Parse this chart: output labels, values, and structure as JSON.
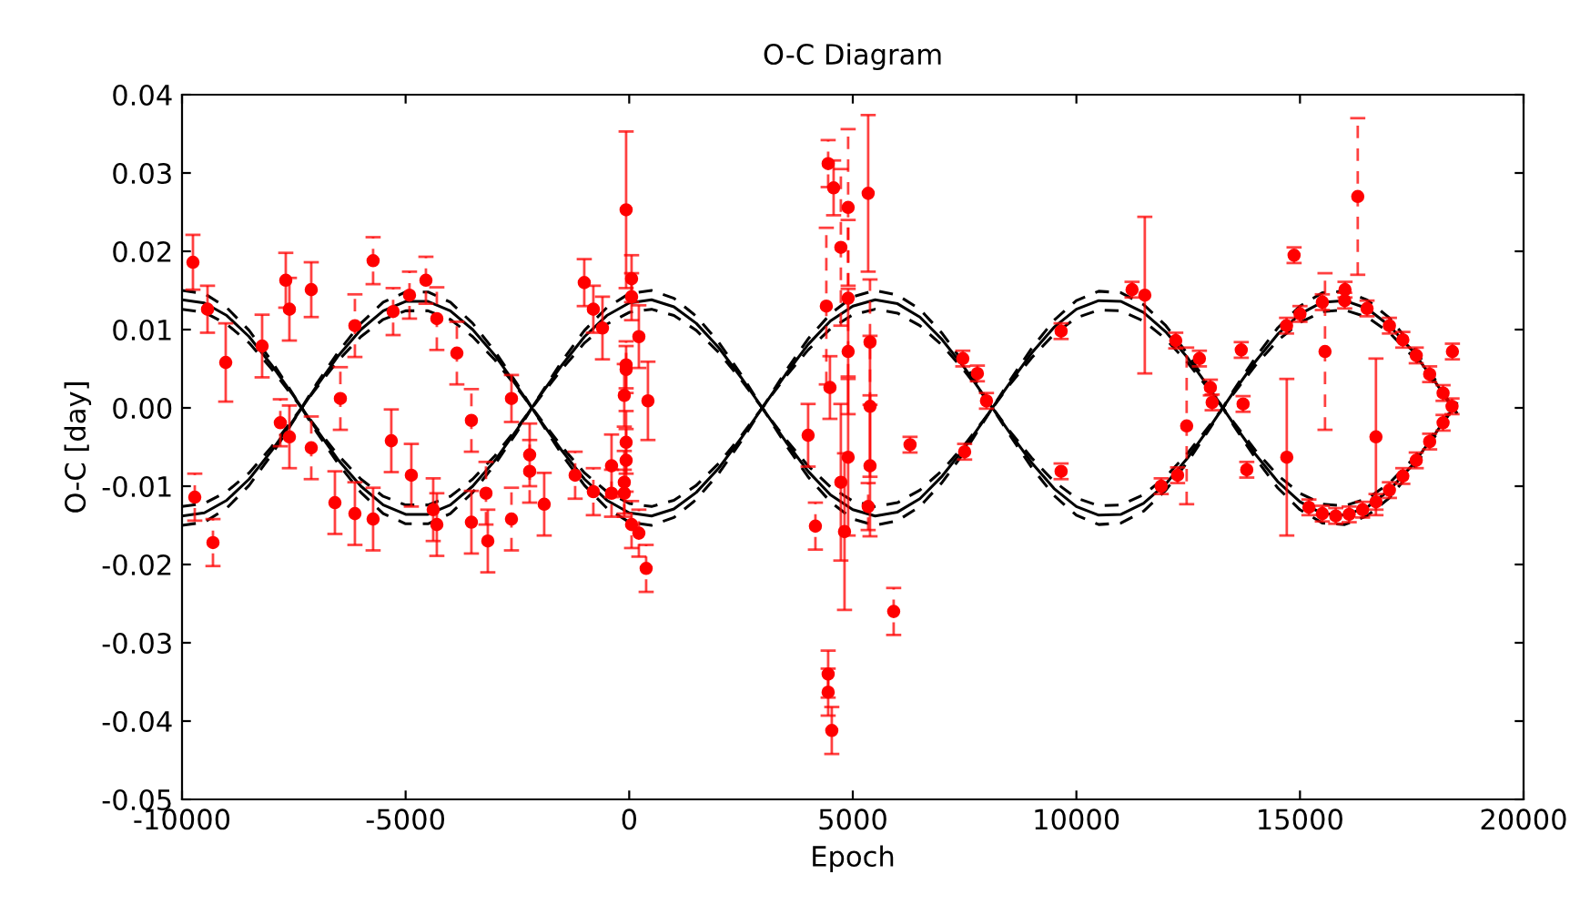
{
  "chart_data": {
    "type": "scatter",
    "title": "O-C Diagram",
    "xlabel": "Epoch",
    "ylabel": "O-C [day]",
    "xlim": [
      -10000,
      20000
    ],
    "xticks": [
      -10000,
      -5000,
      0,
      5000,
      10000,
      15000,
      20000
    ],
    "ylim": [
      -0.05,
      0.04
    ],
    "yticks": [
      {
        "value": -0.05,
        "label": "-0.05"
      },
      {
        "value": -0.04,
        "label": "-0.04"
      },
      {
        "value": -0.03,
        "label": "-0.03"
      },
      {
        "value": -0.02,
        "label": "-0.02"
      },
      {
        "value": -0.01,
        "label": "-0.01"
      },
      {
        "value": 0,
        "label": "0.00"
      },
      {
        "value": 0.01,
        "label": "0.01"
      },
      {
        "value": 0.02,
        "label": "0.02"
      },
      {
        "value": 0.03,
        "label": "0.03"
      },
      {
        "value": 0.04,
        "label": "0.04"
      }
    ],
    "grid": false,
    "series": [
      {
        "color": "#ff0000",
        "marker": "circle",
        "line_style": "solid",
        "x": [
          -9756,
          -9430,
          -9023,
          -8209,
          -7680,
          -7599,
          -7110,
          -7599,
          -6581,
          -6134,
          -5727,
          -5320,
          -4872,
          -4383,
          -4302,
          -3529,
          -3162,
          -2633,
          -2226,
          -1901,
          -1005,
          -802,
          -598,
          -395,
          -69,
          53,
          53,
          -69,
          -110,
          216,
          419,
          -69,
          -69,
          -110,
          4571,
          5344,
          4896,
          4489,
          5385,
          4001,
          4896,
          4733,
          4815,
          5385,
          4449,
          4449,
          4530,
          6280,
          7460,
          7786,
          7989,
          7501,
          9658,
          11245,
          11530,
          13687,
          18409,
          16007,
          16699,
          14705,
          12222,
          12751,
          12996,
          11897,
          12263,
          13810,
          14700,
          15000,
          15500,
          16000,
          16500,
          17000,
          17300,
          17600,
          17900,
          18200,
          18400,
          15200,
          15500,
          15800,
          16100,
          16400,
          16700,
          17000,
          17300,
          17600,
          17900,
          18200
        ],
        "values": [
          0.0186,
          0.0126,
          0.0058,
          0.0079,
          0.0163,
          0.0126,
          0.0151,
          -0.0037,
          -0.0121,
          -0.0135,
          -0.0142,
          -0.0042,
          -0.0086,
          -0.013,
          -0.0149,
          -0.0146,
          -0.017,
          0.0012,
          -0.006,
          -0.0123,
          0.016,
          0.0126,
          0.0102,
          -0.0074,
          0.0253,
          0.0165,
          0.0142,
          0.0049,
          0.0016,
          0.0091,
          0.0009,
          -0.0044,
          -0.0067,
          -0.0095,
          0.0281,
          0.0274,
          0.0072,
          0.0026,
          0.0002,
          -0.0035,
          -0.0063,
          -0.0095,
          -0.0158,
          -0.0074,
          -0.034,
          -0.0363,
          -0.0412,
          -0.0047,
          0.0063,
          0.0044,
          0.0009,
          -0.0056,
          0.0098,
          0.0151,
          0.0144,
          0.0074,
          0.0072,
          0.0151,
          -0.0037,
          -0.0063,
          0.0086,
          0.0063,
          0.0026,
          -0.01,
          -0.0086,
          -0.0079,
          0.0105,
          0.012,
          0.0135,
          0.0137,
          0.0127,
          0.0105,
          0.0087,
          0.0067,
          0.0043,
          0.0019,
          0.0002,
          -0.0127,
          -0.0135,
          -0.0138,
          -0.0136,
          -0.013,
          -0.012,
          -0.0105,
          -0.0087,
          -0.0067,
          -0.0043,
          -0.0019
        ],
        "errors": [
          0.0035,
          0.003,
          0.005,
          0.004,
          0.0035,
          0.004,
          0.0035,
          0.004,
          0.004,
          0.004,
          0.004,
          0.004,
          0.004,
          0.004,
          0.004,
          0.004,
          0.004,
          0.003,
          0.004,
          0.004,
          0.003,
          0.003,
          0.004,
          0.004,
          0.01,
          0.003,
          0.003,
          0.003,
          0.004,
          0.004,
          0.005,
          0.004,
          0.004,
          0.004,
          0.0035,
          0.01,
          0.008,
          0.004,
          0.009,
          0.004,
          0.01,
          0.01,
          0.01,
          0.009,
          0.003,
          0.003,
          0.003,
          0.001,
          0.001,
          0.001,
          0.001,
          0.001,
          0.001,
          0.001,
          0.01,
          0.001,
          0.001,
          0.001,
          0.01,
          0.01,
          0.001,
          0.001,
          0.001,
          0.001,
          0.001,
          0.001,
          0.001,
          0.001,
          0.001,
          0.001,
          0.001,
          0.001,
          0.001,
          0.001,
          0.001,
          0.001,
          0.001,
          0.001,
          0.001,
          0.001,
          0.001,
          0.001,
          0.001,
          0.001,
          0.001,
          0.001,
          0.001,
          0.001
        ]
      },
      {
        "color": "#ff0000",
        "marker": "circle",
        "line_style": "dashed",
        "x": [
          -9715,
          -9308,
          -7802,
          -7110,
          -6459,
          -5727,
          -6134,
          -5279,
          -4913,
          -4546,
          -4302,
          -3854,
          -3529,
          -3203,
          -2633,
          -2226,
          -1209,
          -802,
          -395,
          -110,
          53,
          216,
          379,
          -69,
          4449,
          4896,
          4733,
          4408,
          4896,
          5385,
          5344,
          4164,
          5914,
          9658,
          14868,
          16292,
          15560,
          12466,
          13728,
          13036
        ],
        "values": [
          -0.0114,
          -0.0172,
          -0.0019,
          -0.0051,
          0.0012,
          0.0188,
          0.0105,
          0.0123,
          0.0144,
          0.0163,
          0.0114,
          0.007,
          -0.0016,
          -0.0109,
          -0.0142,
          -0.0081,
          -0.0086,
          -0.0107,
          -0.0109,
          -0.0109,
          -0.0149,
          -0.016,
          -0.0205,
          0.0055,
          0.0312,
          0.0256,
          0.0205,
          0.013,
          0.014,
          0.0084,
          -0.0126,
          -0.0151,
          -0.026,
          -0.0081,
          0.0195,
          0.027,
          0.0072,
          -0.0023,
          0.0005,
          0.0007
        ],
        "errors": [
          0.003,
          0.003,
          0.003,
          0.004,
          0.004,
          0.003,
          0.004,
          0.003,
          0.003,
          0.003,
          0.004,
          0.004,
          0.004,
          0.004,
          0.004,
          0.004,
          0.003,
          0.003,
          0.003,
          0.003,
          0.003,
          0.003,
          0.003,
          0.003,
          0.003,
          0.01,
          0.01,
          0.01,
          0.01,
          0.008,
          0.003,
          0.003,
          0.003,
          0.001,
          0.001,
          0.01,
          0.01,
          0.01,
          0.001,
          0.001
        ]
      },
      {
        "type": "line",
        "color": "#000000",
        "marker": "none",
        "line_style": "solid",
        "values": [
          0.0138,
          0.0134,
          0.0118,
          0.0091,
          0.0055,
          0.0015,
          -0.0027,
          -0.0067,
          -0.01,
          -0.0124,
          -0.0136,
          -0.0136,
          -0.0124,
          -0.01,
          -0.0067,
          -0.0027,
          0.0015,
          0.0055,
          0.0091,
          0.0118,
          0.0134,
          0.0138,
          0.0129,
          0.0108,
          0.0077,
          0.0039,
          -0.0002,
          -0.0043,
          -0.0081,
          -0.0111,
          -0.013,
          -0.0138,
          -0.0133,
          -0.0116,
          -0.0087,
          -0.0051,
          -0.001,
          0.0031,
          0.007,
          0.0103,
          0.0126,
          0.0137,
          0.0136,
          0.0122,
          0.0097,
          0.0063,
          0.0023,
          -0.0019,
          -0.0059,
          -0.0094,
          -0.012,
          -0.0135,
          -0.0137,
          -0.0127,
          -0.0105,
          -0.0074,
          -0.0035,
          0.0006
        ]
      },
      {
        "type": "line",
        "color": "#000000",
        "marker": "none",
        "line_style": "solid",
        "values": [
          -0.0138,
          -0.0134,
          -0.0118,
          -0.0091,
          -0.0055,
          -0.0015,
          0.0027,
          0.0067,
          0.01,
          0.0124,
          0.0136,
          0.0136,
          0.0124,
          0.01,
          0.0067,
          0.0027,
          -0.0015,
          -0.0055,
          -0.0091,
          -0.0118,
          -0.0134,
          -0.0138,
          -0.0129,
          -0.0108,
          -0.0077,
          -0.0039,
          0.0002,
          0.0043,
          0.0081,
          0.0111,
          0.013,
          0.0138,
          0.0133,
          0.0116,
          0.0087,
          0.0051,
          0.001,
          -0.0031,
          -0.007,
          -0.0103,
          -0.0126,
          -0.0137,
          -0.0136,
          -0.0122,
          -0.0097,
          -0.0063,
          -0.0023,
          0.0019,
          0.0059,
          0.0094,
          0.012,
          0.0135,
          0.0137,
          0.0127,
          0.0105,
          0.0074,
          0.0035,
          -0.0006
        ]
      },
      {
        "type": "line",
        "color": "#000000",
        "marker": "none",
        "line_style": "dashed",
        "values": [
          0.015,
          0.0146,
          0.0128,
          0.0099,
          0.006,
          0.0016,
          -0.003,
          -0.0072,
          -0.0108,
          -0.0135,
          -0.0148,
          -0.0148,
          -0.0135,
          -0.0108,
          -0.0072,
          -0.003,
          0.0016,
          0.006,
          0.0099,
          0.0128,
          0.0146,
          0.015,
          0.014,
          0.0117,
          0.0084,
          0.0043,
          -0.0002,
          -0.0047,
          -0.0088,
          -0.012,
          -0.0142,
          -0.015,
          -0.0144,
          -0.0126,
          -0.0095,
          -0.0056,
          -0.0011,
          0.0034,
          0.0076,
          0.0112,
          0.0137,
          0.0149,
          0.0147,
          0.0132,
          0.0105,
          0.0068,
          0.0025,
          -0.0021,
          -0.0064,
          -0.0102,
          -0.013,
          -0.0147,
          -0.0149,
          -0.0138,
          -0.0115,
          -0.008,
          -0.0038,
          0.0007
        ]
      },
      {
        "type": "line",
        "color": "#000000",
        "marker": "none",
        "line_style": "dashed",
        "values": [
          0.0126,
          0.0122,
          0.0107,
          0.0083,
          0.005,
          0.0013,
          -0.0025,
          -0.0061,
          -0.0091,
          -0.0113,
          -0.0124,
          -0.0124,
          -0.0113,
          -0.0091,
          -0.0061,
          -0.0025,
          0.0013,
          0.005,
          0.0083,
          0.0107,
          0.0122,
          0.0126,
          0.0118,
          0.0099,
          0.0071,
          0.0036,
          -0.0002,
          -0.004,
          -0.0074,
          -0.0101,
          -0.0119,
          -0.0126,
          -0.0121,
          -0.0105,
          -0.008,
          -0.0047,
          -0.001,
          0.0029,
          0.0064,
          0.0094,
          0.0115,
          0.0125,
          0.0124,
          0.0111,
          0.0088,
          0.0057,
          0.0021,
          -0.0017,
          -0.0054,
          -0.0086,
          -0.0109,
          -0.0123,
          -0.0125,
          -0.0116,
          -0.0096,
          -0.0067,
          -0.0032,
          0.0006
        ]
      },
      {
        "type": "line",
        "color": "#000000",
        "marker": "none",
        "line_style": "dashed",
        "values": [
          -0.015,
          -0.0146,
          -0.0128,
          -0.0099,
          -0.006,
          -0.0016,
          0.003,
          0.0072,
          0.0108,
          0.0135,
          0.0148,
          0.0148,
          0.0135,
          0.0108,
          0.0072,
          0.003,
          -0.0016,
          -0.006,
          -0.0099,
          -0.0128,
          -0.0146,
          -0.015,
          -0.014,
          -0.0117,
          -0.0084,
          -0.0043,
          0.0002,
          0.0047,
          0.0088,
          0.012,
          0.0142,
          0.015,
          0.0144,
          0.0126,
          0.0095,
          0.0056,
          0.0011,
          -0.0034,
          -0.0076,
          -0.0112,
          -0.0137,
          -0.0149,
          -0.0147,
          -0.0132,
          -0.0105,
          -0.0068,
          -0.0025,
          0.0021,
          0.0064,
          0.0102,
          0.013,
          0.0147,
          0.0149,
          0.0138,
          0.0115,
          0.008,
          0.0038,
          -0.0007
        ]
      },
      {
        "type": "line",
        "color": "#000000",
        "marker": "none",
        "line_style": "dashed",
        "values": [
          -0.0126,
          -0.0122,
          -0.0107,
          -0.0083,
          -0.005,
          -0.0013,
          0.0025,
          0.0061,
          0.0091,
          0.0113,
          0.0124,
          0.0124,
          0.0113,
          0.0091,
          0.0061,
          0.0025,
          -0.0013,
          -0.005,
          -0.0083,
          -0.0107,
          -0.0122,
          -0.0126,
          -0.0118,
          -0.0099,
          -0.0071,
          -0.0036,
          0.0002,
          0.004,
          0.0074,
          0.0101,
          0.0119,
          0.0126,
          0.0121,
          0.0105,
          0.008,
          0.0047,
          0.001,
          -0.0029,
          -0.0064,
          -0.0094,
          -0.0115,
          -0.0125,
          -0.0124,
          -0.0111,
          -0.0088,
          -0.0057,
          -0.0021,
          0.0017,
          0.0054,
          0.0086,
          0.0109,
          0.0123,
          0.0125,
          0.0116,
          0.0096,
          0.0067,
          0.0032,
          -0.0006
        ]
      }
    ],
    "x": [
      -10000,
      -9500,
      -9000,
      -8500,
      -8000,
      -7500,
      -7000,
      -6500,
      -6000,
      -5500,
      -5000,
      -4500,
      -4000,
      -3500,
      -3000,
      -2500,
      -2000,
      -1500,
      -1000,
      -500,
      0,
      500,
      1000,
      1500,
      2000,
      2500,
      3000,
      3500,
      4000,
      4500,
      5000,
      5500,
      6000,
      6500,
      7000,
      7500,
      8000,
      8500,
      9000,
      9500,
      10000,
      10500,
      11000,
      11500,
      12000,
      12500,
      13000,
      13500,
      14000,
      14500,
      15000,
      15500,
      16000,
      16500,
      17000,
      17500,
      18000,
      18500
    ]
  }
}
